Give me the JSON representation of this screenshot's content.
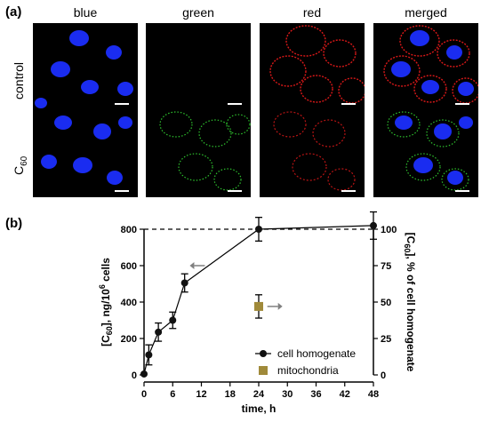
{
  "panel_a": {
    "label": "(a)",
    "columns": [
      "blue",
      "green",
      "red",
      "merged"
    ],
    "rows": [
      {
        "label": "control",
        "sub": ""
      },
      {
        "label": "C",
        "sub": "60"
      }
    ]
  },
  "panel_b": {
    "label": "(b)"
  },
  "chart_data": {
    "type": "line",
    "xlabel": "time, h",
    "ylabel_left": "[C60], ng/10^6 cells",
    "ylabel_right": "[C60], % of cell homogenate",
    "xlim": [
      0,
      48
    ],
    "ylim_left": [
      0,
      800
    ],
    "ylim_right": [
      0,
      100
    ],
    "x_ticks": [
      0,
      6,
      12,
      18,
      24,
      30,
      36,
      42,
      48
    ],
    "y_ticks_left": [
      0,
      200,
      400,
      600,
      800
    ],
    "y_ticks_right": [
      0,
      25,
      50,
      75,
      100
    ],
    "reference_line": {
      "axis": "right",
      "value": 100,
      "style": "dashed"
    },
    "series": [
      {
        "name": "cell homogenate",
        "axis": "left",
        "marker": "circle",
        "color": "#111111",
        "x": [
          0,
          1,
          3,
          6,
          8.5,
          24,
          48
        ],
        "y": [
          5,
          110,
          235,
          300,
          505,
          800,
          820
        ],
        "err": [
          0,
          55,
          50,
          45,
          50,
          65,
          75
        ]
      },
      {
        "name": "mitochondria",
        "axis": "right",
        "marker": "square",
        "color": "#a08a3a",
        "x": [
          24
        ],
        "y": [
          47
        ],
        "err": [
          8
        ]
      }
    ],
    "legend_position": "bottom-right",
    "arrows": [
      {
        "series": "cell homogenate",
        "points_to": "left"
      },
      {
        "series": "mitochondria",
        "points_to": "right"
      }
    ]
  }
}
